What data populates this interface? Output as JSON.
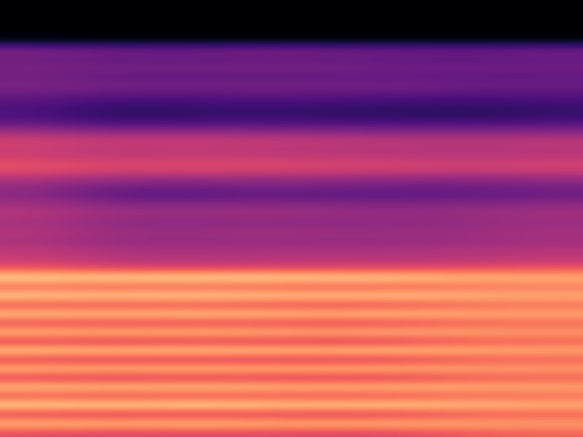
{
  "chart_data": {
    "type": "heatmap",
    "tick_labels": false,
    "color_range": [
      0,
      100
    ],
    "cells": [
      [
        0,
        0,
        0,
        0,
        0,
        0,
        0,
        0
      ],
      [
        0,
        0,
        0,
        0,
        0,
        0,
        0,
        0
      ],
      [
        0,
        0,
        0,
        0,
        0,
        0,
        0,
        0
      ],
      [
        0,
        0,
        0,
        0,
        0,
        0,
        0,
        0
      ],
      [
        4,
        4,
        4,
        4,
        4,
        4,
        4,
        4
      ],
      [
        38,
        34,
        33,
        35,
        34,
        33,
        32,
        34
      ],
      [
        32,
        30,
        29,
        31,
        30,
        29,
        28,
        30
      ],
      [
        36,
        34,
        35,
        34,
        35,
        33,
        34,
        33
      ],
      [
        33,
        30,
        29,
        30,
        29,
        30,
        28,
        29
      ],
      [
        37,
        35,
        34,
        35,
        34,
        35,
        33,
        32
      ],
      [
        30,
        27,
        26,
        28,
        27,
        26,
        25,
        26
      ],
      [
        26,
        20,
        21,
        22,
        21,
        20,
        19,
        21
      ],
      [
        24,
        16,
        17,
        18,
        17,
        16,
        15,
        18
      ],
      [
        30,
        24,
        25,
        26,
        25,
        24,
        24,
        26
      ],
      [
        45,
        40,
        41,
        40,
        39,
        38,
        38,
        39
      ],
      [
        58,
        55,
        56,
        55,
        54,
        53,
        52,
        53
      ],
      [
        54,
        50,
        51,
        50,
        49,
        48,
        47,
        49
      ],
      [
        58,
        55,
        56,
        56,
        55,
        54,
        53,
        54
      ],
      [
        64,
        60,
        61,
        60,
        59,
        58,
        57,
        58
      ],
      [
        50,
        45,
        44,
        45,
        44,
        43,
        42,
        44
      ],
      [
        42,
        34,
        33,
        35,
        34,
        33,
        33,
        35
      ],
      [
        40,
        29,
        28,
        30,
        29,
        29,
        30,
        32
      ],
      [
        46,
        40,
        39,
        40,
        39,
        38,
        39,
        41
      ],
      [
        50,
        45,
        44,
        45,
        44,
        43,
        44,
        46
      ],
      [
        46,
        40,
        39,
        40,
        39,
        40,
        41,
        43
      ],
      [
        50,
        45,
        44,
        46,
        45,
        44,
        45,
        47
      ],
      [
        47,
        42,
        41,
        42,
        41,
        42,
        43,
        45
      ],
      [
        52,
        48,
        47,
        48,
        47,
        48,
        49,
        50
      ],
      [
        55,
        50,
        49,
        50,
        51,
        50,
        51,
        53
      ],
      [
        64,
        60,
        59,
        60,
        60,
        60,
        62,
        64
      ],
      [
        95,
        94,
        96,
        95,
        94,
        93,
        88,
        86
      ],
      [
        66,
        64,
        65,
        64,
        63,
        64,
        68,
        70
      ],
      [
        93,
        92,
        93,
        92,
        91,
        92,
        87,
        85
      ],
      [
        61,
        60,
        61,
        60,
        59,
        60,
        66,
        68
      ],
      [
        91,
        90,
        91,
        90,
        89,
        90,
        85,
        84
      ],
      [
        59,
        57,
        58,
        58,
        57,
        58,
        64,
        66
      ],
      [
        89,
        88,
        89,
        88,
        87,
        88,
        84,
        82
      ],
      [
        56,
        54,
        55,
        55,
        54,
        55,
        62,
        64
      ],
      [
        93,
        92,
        93,
        92,
        91,
        92,
        87,
        85
      ],
      [
        56,
        54,
        55,
        54,
        54,
        55,
        62,
        64
      ],
      [
        89,
        88,
        89,
        88,
        88,
        88,
        84,
        82
      ],
      [
        56,
        54,
        55,
        55,
        54,
        55,
        62,
        64
      ],
      [
        91,
        90,
        91,
        90,
        89,
        90,
        86,
        84
      ],
      [
        61,
        59,
        60,
        60,
        59,
        60,
        65,
        67
      ],
      [
        96,
        95,
        96,
        95,
        94,
        95,
        89,
        87
      ],
      [
        56,
        54,
        55,
        55,
        54,
        55,
        62,
        64
      ],
      [
        89,
        88,
        89,
        88,
        87,
        88,
        84,
        82
      ],
      [
        61,
        59,
        60,
        60,
        59,
        60,
        65,
        67
      ]
    ]
  }
}
